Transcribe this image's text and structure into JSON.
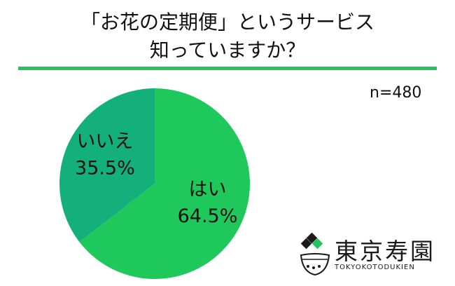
{
  "title_lines": [
    "「お花の定期便」というサービス",
    "知っていますか？"
  ],
  "sample_label": "n=480",
  "colors": {
    "accent": "#22c45a",
    "yes": "#1ec85a",
    "no": "#14b07c",
    "text": "#111111"
  },
  "chart_data": {
    "type": "pie",
    "title": "「お花の定期便」というサービス知っていますか？",
    "slices": [
      {
        "label": "はい",
        "value": 64.5,
        "display": "64.5%",
        "color": "#1ec85a"
      },
      {
        "label": "いいえ",
        "value": 35.5,
        "display": "35.5%",
        "color": "#14b07c"
      }
    ],
    "start": "12 o'clock",
    "direction": "clockwise"
  },
  "logo": {
    "kanji": "東京寿園",
    "roman": "TOKYOKOTODUKIEN"
  }
}
